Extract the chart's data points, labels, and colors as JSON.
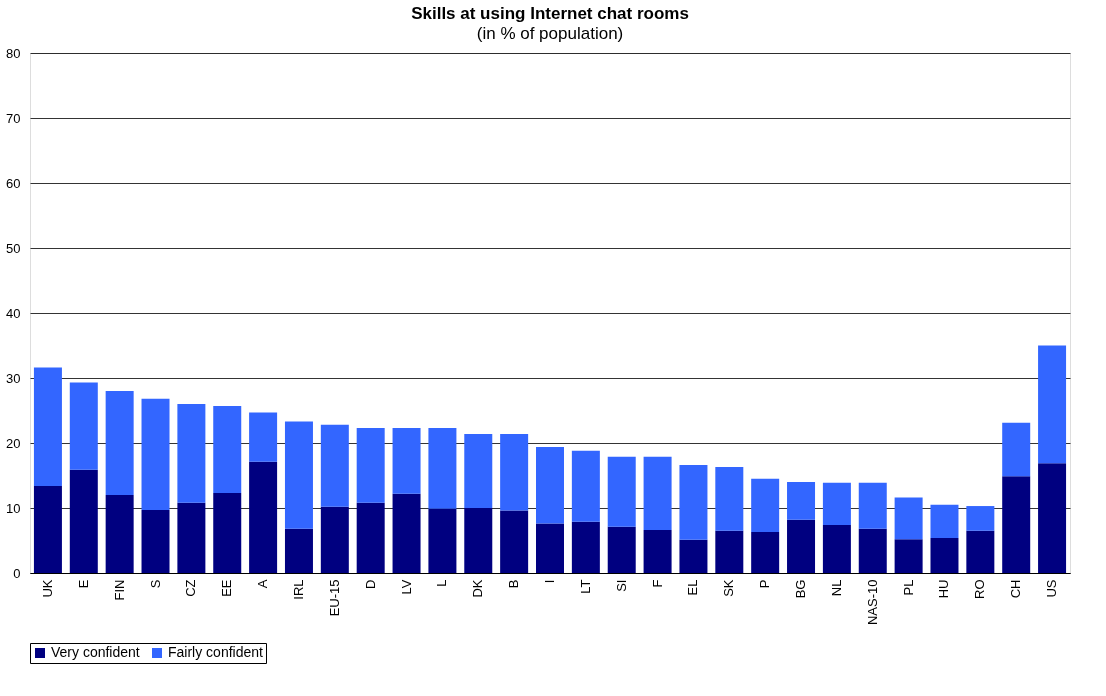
{
  "chart_data": {
    "type": "bar",
    "title": "Skills at using Internet chat rooms",
    "subtitle": "(in % of population)",
    "categories": [
      "UK",
      "E",
      "FIN",
      "S",
      "CZ",
      "EE",
      "A",
      "IRL",
      "EU-15",
      "D",
      "LV",
      "L",
      "DK",
      "B",
      "I",
      "LT",
      "SI",
      "F",
      "EL",
      "SK",
      "P",
      "BG",
      "NL",
      "NAS-10",
      "PL",
      "HU",
      "RO",
      "CH",
      "US"
    ],
    "stacked": true,
    "series": [
      {
        "name": "Very confident",
        "color": "#000080",
        "values": [
          13.4,
          15.9,
          12.0,
          9.7,
          10.8,
          12.3,
          17.1,
          6.8,
          10.2,
          10.8,
          12.2,
          9.9,
          10.0,
          9.6,
          7.6,
          7.9,
          7.1,
          6.6,
          5.1,
          6.5,
          6.3,
          8.2,
          7.4,
          6.8,
          5.2,
          5.4,
          6.5,
          14.9,
          16.9
        ]
      },
      {
        "name": "Fairly confident",
        "color": "#3366ff",
        "values": [
          18.2,
          13.4,
          16.0,
          17.1,
          15.2,
          13.4,
          7.6,
          16.5,
          12.6,
          11.5,
          10.1,
          12.4,
          11.4,
          11.8,
          11.8,
          10.9,
          10.8,
          11.3,
          11.5,
          9.8,
          8.2,
          5.8,
          6.5,
          7.1,
          6.4,
          5.1,
          3.8,
          8.2,
          18.1
        ]
      }
    ],
    "ylim": [
      0,
      80
    ],
    "yticks": [
      0,
      10,
      20,
      30,
      40,
      50,
      60,
      70,
      80
    ],
    "grid": "y",
    "legend": "bottom"
  }
}
